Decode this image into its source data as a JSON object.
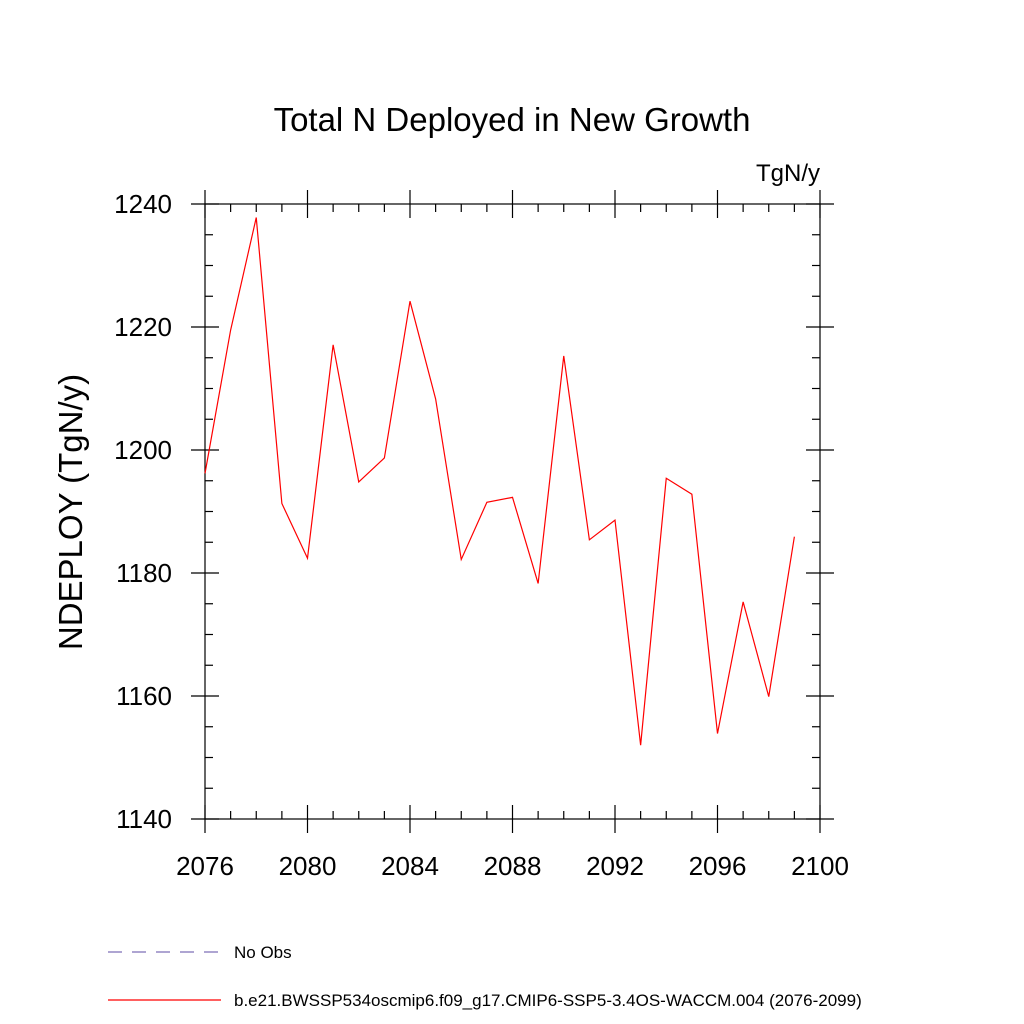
{
  "chart_data": {
    "type": "line",
    "title": "Total N Deployed in New Growth",
    "units": "TgN/y",
    "ylabel": "NDEPLOY  (TgN/y)",
    "xlabel": "",
    "xlim": [
      2076,
      2100
    ],
    "ylim": [
      1140,
      1240
    ],
    "x_ticks": [
      2076,
      2080,
      2084,
      2088,
      2092,
      2096,
      2100
    ],
    "y_ticks": [
      1140,
      1160,
      1180,
      1200,
      1220,
      1240
    ],
    "x_minor_step": 1,
    "y_minor_step": 5,
    "grid": false,
    "legend_position": "bottom-left",
    "series": [
      {
        "name": "No Obs",
        "color": "#7d6fb6",
        "dash": "dashed",
        "x": [],
        "values": []
      },
      {
        "name": "b.e21.BWSSP534oscmip6.f09_g17.CMIP6-SSP5-3.4OS-WACCM.004 (2076-2099)",
        "color": "#ff0000",
        "dash": "solid",
        "x": [
          2076,
          2077,
          2078,
          2079,
          2080,
          2081,
          2082,
          2083,
          2084,
          2085,
          2086,
          2087,
          2088,
          2089,
          2090,
          2091,
          2092,
          2093,
          2094,
          2095,
          2096,
          2097,
          2098,
          2099
        ],
        "values": [
          1196.2,
          1219.5,
          1237.8,
          1191.3,
          1182.4,
          1217.1,
          1194.8,
          1198.7,
          1224.2,
          1208.3,
          1182.2,
          1191.5,
          1192.3,
          1178.3,
          1215.3,
          1185.4,
          1188.6,
          1152.0,
          1195.4,
          1192.8,
          1153.9,
          1175.3,
          1159.9,
          1185.9
        ]
      }
    ]
  }
}
